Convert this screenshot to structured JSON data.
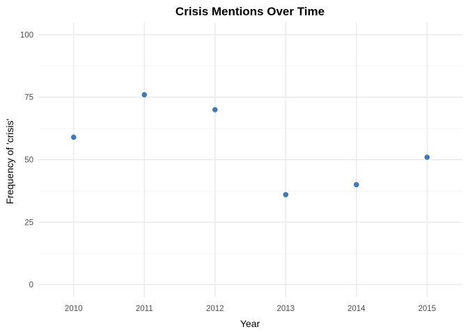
{
  "chart_data": {
    "type": "scatter",
    "title": "Crisis Mentions Over Time",
    "xlabel": "Year",
    "ylabel": "Frequency of 'crisis'",
    "x": [
      2010,
      2011,
      2012,
      2013,
      2014,
      2015
    ],
    "y": [
      59,
      76,
      70,
      36,
      40,
      51
    ],
    "xticks": [
      "2010",
      "2011",
      "2012",
      "2013",
      "2014",
      "2015"
    ],
    "yticks": [
      "0",
      "25",
      "50",
      "75",
      "100"
    ],
    "ytick_values": [
      0,
      25,
      50,
      75,
      100
    ],
    "xlim": [
      2009.5,
      2015.5
    ],
    "ylim": [
      -5,
      105
    ],
    "grid": true,
    "legend": "none",
    "point_color": "#4378b3",
    "grid_color": "#e6e6e6"
  }
}
